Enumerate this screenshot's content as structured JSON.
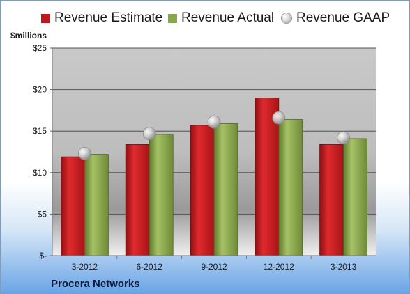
{
  "chart_data": {
    "type": "bar",
    "categories": [
      "3-2012",
      "6-2012",
      "9-2012",
      "12-2012",
      "3-2013"
    ],
    "series": [
      {
        "name": "Revenue Estimate",
        "kind": "bar",
        "color": "#c0171c",
        "values": [
          11.9,
          13.4,
          15.7,
          19.0,
          13.4
        ]
      },
      {
        "name": "Revenue Actual",
        "kind": "bar",
        "color": "#8aa64a",
        "values": [
          12.2,
          14.6,
          15.9,
          16.4,
          14.1
        ]
      },
      {
        "name": "Revenue GAAP",
        "kind": "marker",
        "color": "#c8c8c8",
        "values": [
          12.3,
          14.7,
          16.1,
          16.6,
          14.2
        ]
      }
    ],
    "ylabel": "$millions",
    "ylim": [
      0,
      25
    ],
    "yticks": [
      0,
      5,
      10,
      15,
      20,
      25
    ],
    "ytick_labels": [
      "$-",
      "$5",
      "$10",
      "$15",
      "$20",
      "$25"
    ],
    "grid": true,
    "legend_position": "top"
  },
  "company_name": "Procera Networks"
}
